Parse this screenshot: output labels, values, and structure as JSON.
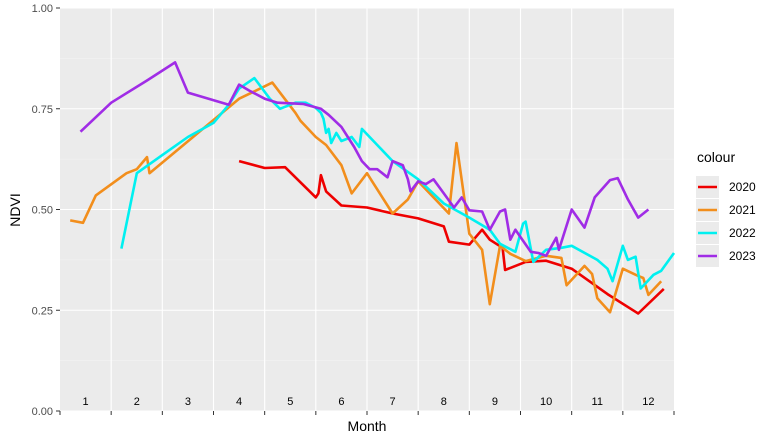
{
  "colors": {
    "panel": "#ebebeb",
    "grid_major": "#ffffff",
    "grid_minor": "#f5f5f5",
    "tick_text": "#4d4d4d",
    "axis_tick": "#333333"
  },
  "chart_data": {
    "type": "line",
    "xlabel": "Month",
    "ylabel": "NDVI",
    "xlim": [
      0.5,
      12.5
    ],
    "ylim": [
      0,
      1
    ],
    "y_ticks": [
      0,
      0.25,
      0.5,
      0.75,
      1
    ],
    "y_tick_labels": [
      "0.00",
      "0.25",
      "0.50",
      "0.75",
      "1.00"
    ],
    "month_labels": [
      "1",
      "2",
      "3",
      "4",
      "5",
      "6",
      "7",
      "8",
      "9",
      "10",
      "11",
      "12"
    ],
    "grid": true,
    "legend": {
      "title": "colour",
      "position": "right"
    },
    "series": [
      {
        "name": "2020",
        "color": "#ee0000",
        "x": [
          4.0,
          4.5,
          4.9,
          5.5,
          5.55,
          5.6,
          5.7,
          6.0,
          6.5,
          7.0,
          7.5,
          8.0,
          8.1,
          8.5,
          8.75,
          8.9,
          9.15,
          9.2,
          9.6,
          10.0,
          10.5,
          11.2,
          11.8,
          12.3
        ],
        "y": [
          0.62,
          0.603,
          0.605,
          0.53,
          0.54,
          0.585,
          0.545,
          0.51,
          0.505,
          0.49,
          0.478,
          0.458,
          0.42,
          0.413,
          0.45,
          0.425,
          0.405,
          0.35,
          0.37,
          0.373,
          0.353,
          0.29,
          0.242,
          0.303
        ]
      },
      {
        "name": "2021",
        "color": "#f28e1c",
        "x": [
          0.7,
          0.95,
          1.2,
          1.8,
          2.0,
          2.2,
          2.25,
          4.0,
          4.25,
          4.65,
          5.1,
          5.2,
          5.5,
          5.7,
          6.0,
          6.2,
          6.5,
          6.6,
          7.0,
          7.3,
          7.5,
          8.1,
          8.25,
          8.5,
          8.75,
          8.9,
          9.1,
          9.3,
          9.6,
          10.0,
          10.3,
          10.4,
          10.75,
          10.9,
          11.0,
          11.25,
          11.5,
          11.8,
          11.9,
          12.0,
          12.25
        ],
        "y": [
          0.473,
          0.467,
          0.535,
          0.59,
          0.6,
          0.63,
          0.59,
          0.775,
          0.79,
          0.815,
          0.74,
          0.72,
          0.68,
          0.66,
          0.61,
          0.54,
          0.59,
          0.57,
          0.49,
          0.525,
          0.57,
          0.49,
          0.665,
          0.44,
          0.4,
          0.265,
          0.41,
          0.39,
          0.372,
          0.385,
          0.38,
          0.312,
          0.36,
          0.34,
          0.28,
          0.245,
          0.353,
          0.335,
          0.33,
          0.288,
          0.322
        ]
      },
      {
        "name": "2022",
        "color": "#00f0f0",
        "x": [
          1.7,
          2.0,
          2.5,
          3.0,
          3.5,
          3.8,
          4.0,
          4.3,
          4.6,
          4.8,
          5.1,
          5.3,
          5.5,
          5.6,
          5.65,
          5.7,
          5.75,
          5.8,
          5.9,
          6.0,
          6.2,
          6.35,
          6.4,
          7.0,
          7.5,
          8.0,
          8.5,
          8.9,
          9.1,
          9.4,
          9.55,
          9.6,
          9.75,
          10.0,
          10.3,
          10.5,
          11.0,
          11.2,
          11.3,
          11.5,
          11.6,
          11.75,
          11.85,
          12.1,
          12.25,
          12.5
        ],
        "y": [
          0.403,
          0.59,
          0.635,
          0.68,
          0.715,
          0.76,
          0.8,
          0.826,
          0.775,
          0.75,
          0.765,
          0.765,
          0.752,
          0.74,
          0.725,
          0.69,
          0.7,
          0.665,
          0.69,
          0.67,
          0.68,
          0.655,
          0.7,
          0.62,
          0.575,
          0.515,
          0.48,
          0.45,
          0.415,
          0.395,
          0.465,
          0.47,
          0.37,
          0.4,
          0.405,
          0.41,
          0.375,
          0.353,
          0.322,
          0.41,
          0.375,
          0.383,
          0.304,
          0.338,
          0.348,
          0.392
        ]
      },
      {
        "name": "2023",
        "color": "#a02ce6",
        "x": [
          0.9,
          1.5,
          2.2,
          2.75,
          3.0,
          3.8,
          4.0,
          4.2,
          4.5,
          4.75,
          5.25,
          5.6,
          5.75,
          6.0,
          6.25,
          6.4,
          6.55,
          6.7,
          6.9,
          7.0,
          7.2,
          7.3,
          7.35,
          7.5,
          7.65,
          7.8,
          8.0,
          8.2,
          8.35,
          8.5,
          8.75,
          8.9,
          9.1,
          9.2,
          9.3,
          9.4,
          9.7,
          9.85,
          10.0,
          10.2,
          10.25,
          10.5,
          10.75,
          10.95,
          11.25,
          11.4,
          11.6,
          11.8,
          12.0
        ],
        "y": [
          0.693,
          0.765,
          0.82,
          0.865,
          0.79,
          0.76,
          0.81,
          0.795,
          0.775,
          0.765,
          0.762,
          0.75,
          0.735,
          0.705,
          0.655,
          0.62,
          0.6,
          0.6,
          0.58,
          0.62,
          0.61,
          0.575,
          0.545,
          0.57,
          0.563,
          0.575,
          0.54,
          0.505,
          0.53,
          0.498,
          0.495,
          0.45,
          0.495,
          0.5,
          0.425,
          0.45,
          0.395,
          0.392,
          0.385,
          0.43,
          0.4,
          0.5,
          0.455,
          0.53,
          0.573,
          0.578,
          0.525,
          0.48,
          0.5
        ]
      }
    ]
  }
}
